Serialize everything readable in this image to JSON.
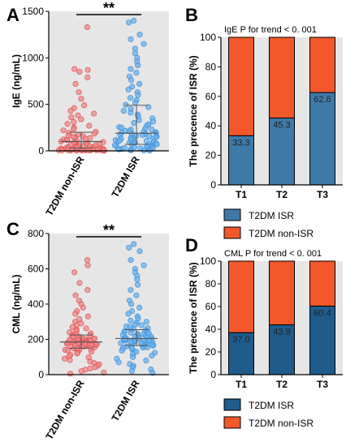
{
  "colors": {
    "background": "#e6e6e6",
    "non_isr_dot": "#f08a8a",
    "non_isr_dot_stroke": "#e05050",
    "isr_dot": "#6ab2ee",
    "isr_dot_stroke": "#3f8fd8",
    "bar_isr": "#3e7aa8",
    "bar_isr_dark": "#1f5c8c",
    "bar_non_isr": "#f2582a"
  },
  "chart_data": [
    {
      "panel": "A",
      "type": "scatter",
      "subtype": "dot-plot",
      "categories": [
        "T2DM non-ISR",
        "T2DM ISR"
      ],
      "ylabel": "IgE (ng/mL)",
      "ylim": [
        0,
        1500
      ],
      "yticks": [
        "0",
        "500",
        "1000",
        "1500"
      ],
      "significance": "**",
      "grid": false,
      "series": [
        {
          "values": [
            1330,
            870,
            880,
            850,
            790,
            720,
            630,
            560,
            490,
            460,
            430,
            400,
            380,
            360,
            340,
            310,
            290,
            270,
            250,
            235,
            220,
            205,
            195,
            185,
            175,
            165,
            155,
            145,
            138,
            130,
            122,
            115,
            108,
            100,
            94,
            88,
            82,
            76,
            70,
            65,
            60,
            55,
            50,
            46,
            42,
            38,
            34,
            30,
            27,
            24,
            21,
            18,
            15,
            12,
            10,
            8,
            6,
            4,
            3,
            2,
            1,
            150,
            120,
            90,
            70,
            50,
            40,
            30,
            20,
            15,
            10,
            8,
            5,
            3,
            2,
            60,
            45,
            35,
            25,
            18,
            12,
            9,
            7,
            5,
            4
          ],
          "median": 100,
          "q1": 30,
          "q3": 200
        },
        {
          "values": [
            1400,
            1380,
            1250,
            1200,
            1150,
            1100,
            1050,
            1000,
            960,
            920,
            880,
            840,
            800,
            760,
            720,
            690,
            660,
            630,
            600,
            570,
            545,
            520,
            495,
            470,
            450,
            430,
            410,
            390,
            370,
            350,
            330,
            315,
            300,
            285,
            270,
            255,
            240,
            228,
            216,
            204,
            192,
            180,
            170,
            160,
            150,
            140,
            132,
            124,
            116,
            108,
            100,
            92,
            85,
            78,
            72,
            66,
            60,
            54,
            48,
            42,
            36,
            30,
            25,
            20,
            16,
            12,
            9,
            6,
            4,
            2,
            200,
            180,
            160,
            140,
            120,
            100,
            80,
            60,
            40,
            20,
            250,
            230,
            210,
            190,
            170,
            150,
            130,
            110,
            90,
            70,
            50,
            30
          ],
          "median": 190,
          "q1": 70,
          "q3": 490
        }
      ]
    },
    {
      "panel": "B",
      "type": "bar",
      "subtype": "stacked-100",
      "title": "IgE P for trend < 0. 001",
      "categories": [
        "T1",
        "T2",
        "T3"
      ],
      "ylabel": "The precence of ISR (%)",
      "ylim": [
        0,
        100
      ],
      "yticks": [
        "0",
        "20",
        "40",
        "60",
        "80",
        "100"
      ],
      "legend_position": "bottom",
      "series": [
        {
          "name": "T2DM ISR",
          "values": [
            33.3,
            45.3,
            62.6
          ]
        },
        {
          "name": "T2DM non-ISR",
          "values": [
            66.7,
            54.7,
            37.4
          ]
        }
      ],
      "data_labels": [
        "33.3",
        "45.3",
        "62.6"
      ]
    },
    {
      "panel": "C",
      "type": "scatter",
      "subtype": "dot-plot",
      "categories": [
        "T2DM non-ISR",
        "T2DM ISR"
      ],
      "ylabel": "CML (ng/mL)",
      "ylim": [
        0,
        800
      ],
      "yticks": [
        "0",
        "200",
        "400",
        "600",
        "800"
      ],
      "significance": "**",
      "grid": false,
      "series": [
        {
          "values": [
            650,
            620,
            580,
            520,
            480,
            450,
            420,
            400,
            380,
            360,
            345,
            330,
            315,
            300,
            290,
            280,
            270,
            262,
            255,
            248,
            240,
            234,
            228,
            222,
            216,
            210,
            205,
            200,
            196,
            192,
            188,
            184,
            180,
            176,
            172,
            168,
            164,
            160,
            155,
            150,
            145,
            140,
            135,
            130,
            125,
            120,
            112,
            105,
            98,
            90,
            82,
            74,
            66,
            58,
            50,
            42,
            35,
            28,
            20,
            12,
            5,
            230,
            220,
            210,
            200,
            190,
            185,
            175,
            170,
            165,
            160,
            150,
            140,
            200,
            195,
            190,
            185,
            180,
            178,
            172,
            168,
            215,
            205,
            198,
            188,
            182,
            176,
            166,
            158,
            148,
            138
          ],
          "median": 185,
          "q1": 150,
          "q3": 225
        },
        {
          "values": [
            740,
            720,
            700,
            650,
            620,
            600,
            580,
            560,
            540,
            510,
            480,
            450,
            420,
            400,
            380,
            360,
            345,
            330,
            318,
            306,
            294,
            284,
            274,
            264,
            255,
            246,
            238,
            230,
            222,
            215,
            208,
            202,
            196,
            190,
            184,
            178,
            172,
            166,
            160,
            154,
            148,
            142,
            136,
            130,
            124,
            116,
            108,
            100,
            90,
            80,
            70,
            60,
            50,
            40,
            30,
            20,
            10,
            250,
            240,
            230,
            220,
            210,
            205,
            200,
            195,
            190,
            185,
            180,
            175,
            170,
            165,
            160,
            155,
            150,
            260,
            245,
            235,
            225,
            215,
            205,
            198,
            192,
            186,
            180,
            174,
            168,
            210,
            200,
            190,
            300,
            280,
            270
          ],
          "median": 205,
          "q1": 165,
          "q3": 255
        }
      ]
    },
    {
      "panel": "D",
      "type": "bar",
      "subtype": "stacked-100",
      "title": "CML P for trend < 0. 001",
      "categories": [
        "T1",
        "T2",
        "T3"
      ],
      "ylabel": "The precence of ISR (%)",
      "ylim": [
        0,
        100
      ],
      "yticks": [
        "0",
        "20",
        "40",
        "60",
        "80",
        "100"
      ],
      "legend_position": "bottom",
      "series": [
        {
          "name": "T2DM ISR",
          "values": [
            37.0,
            43.9,
            60.4
          ]
        },
        {
          "name": "T2DM non-ISR",
          "values": [
            63.0,
            56.1,
            39.6
          ]
        }
      ],
      "data_labels": [
        "37.0",
        "43.9",
        "60.4"
      ]
    }
  ]
}
